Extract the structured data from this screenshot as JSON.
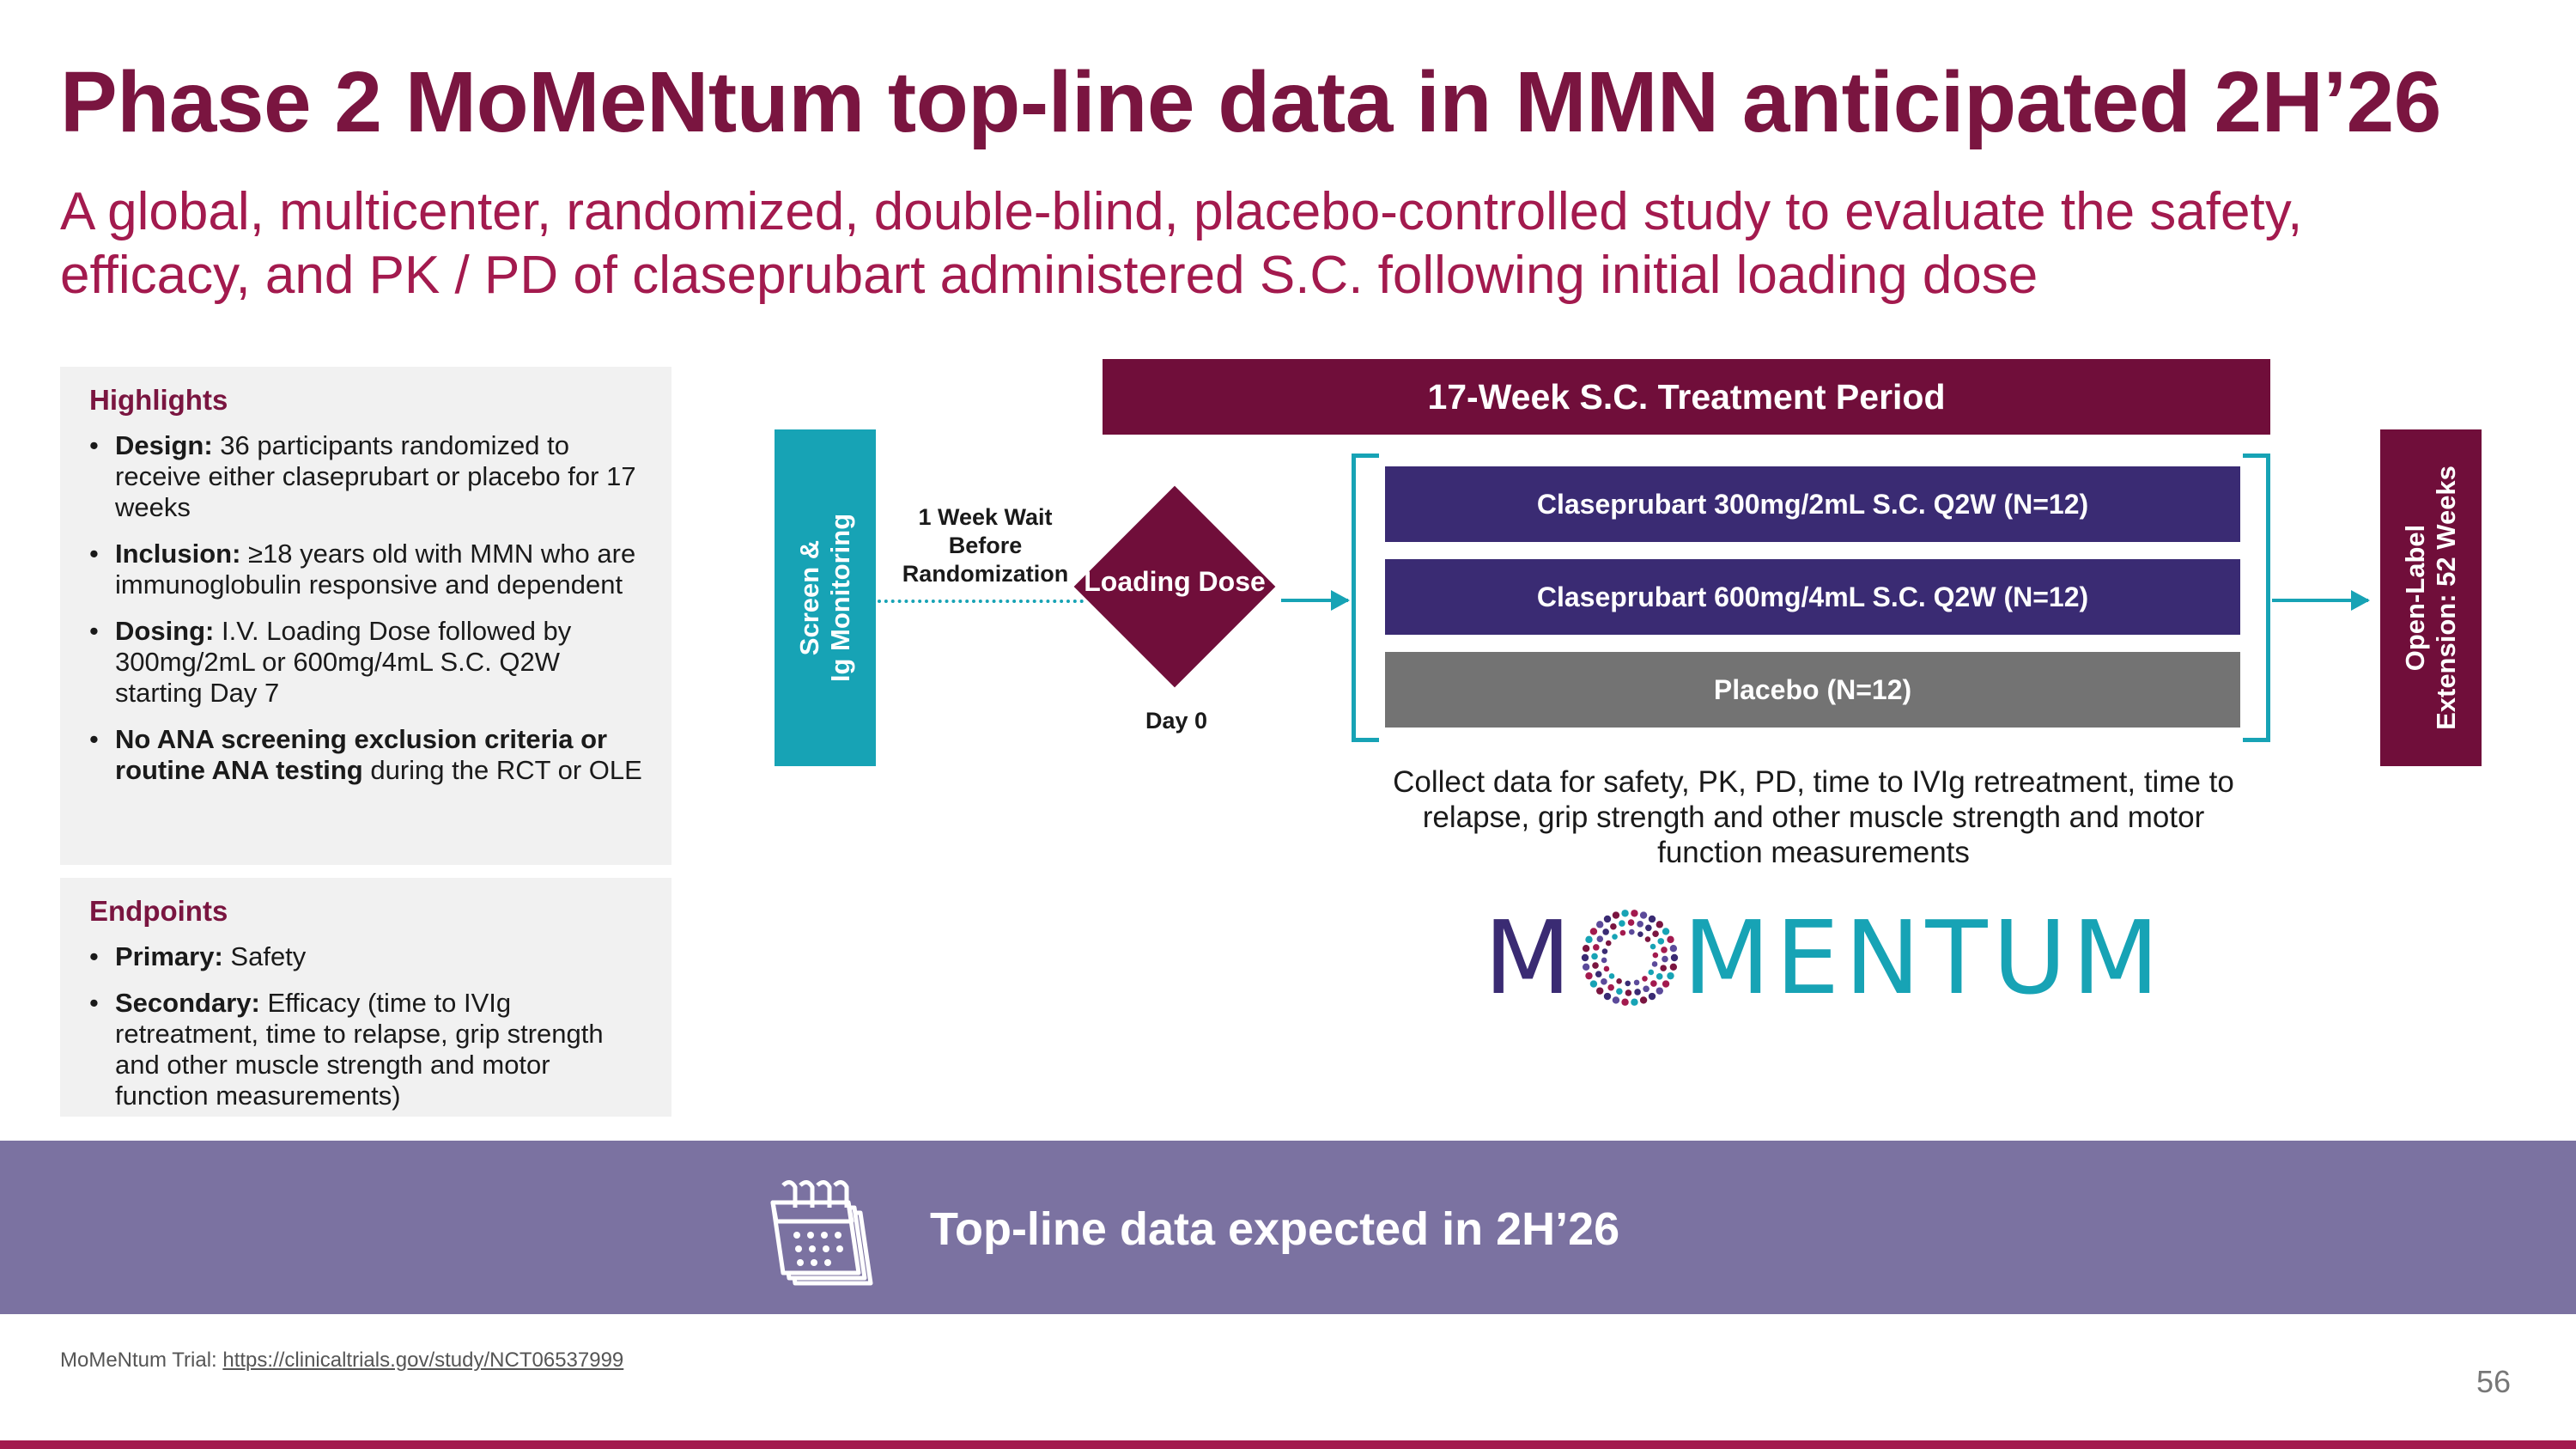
{
  "title": "Phase 2 MoMeNtum top-line data in MMN anticipated 2H’26",
  "subtitle": "A global, multicenter, randomized, double-blind, placebo-controlled study to evaluate the safety, efficacy, and PK / PD of claseprubart administered S.C. following initial loading dose",
  "highlights": {
    "heading": "Highlights",
    "items": [
      {
        "bold": "Design:",
        "text": " 36 participants randomized to receive either claseprubart or placebo for 17 weeks",
        "tail": ""
      },
      {
        "bold": "Inclusion:",
        "text": " ≥18 years old with MMN who are immunoglobulin responsive and dependent",
        "tail": ""
      },
      {
        "bold": "Dosing:",
        "text": " I.V. Loading Dose followed by 300mg/2mL or 600mg/4mL S.C. Q2W starting Day 7",
        "tail": ""
      },
      {
        "bold": "No ANA screening exclusion criteria or routine ANA testing",
        "text": " during the RCT or OLE",
        "tail": ""
      }
    ]
  },
  "endpoints": {
    "heading": "Endpoints",
    "items": [
      {
        "bold": "Primary:",
        "text": " Safety"
      },
      {
        "bold": "Secondary:",
        "text": " Efficacy (time to IVIg retreatment, time to relapse, grip strength and other muscle strength and motor function measurements)"
      }
    ]
  },
  "diagram": {
    "treatment_period": "17-Week S.C. Treatment Period",
    "screen_lines": [
      "Screen &",
      "Ig Monitoring"
    ],
    "wait_label": "1 Week Wait Before Randomization",
    "loading_dose": "Loading Dose",
    "day0": "Day 0",
    "arms": [
      "Claseprubart 300mg/2mL S.C. Q2W (N=12)",
      "Claseprubart 600mg/4mL S.C. Q2W (N=12)",
      "Placebo (N=12)"
    ],
    "ole_lines": [
      "Open-Label",
      "Extension: 52 Weeks"
    ],
    "collect": "Collect data for safety, PK, PD, time to IVIg retreatment, time to relapse, grip strength and other muscle strength and motor function measurements"
  },
  "logo": {
    "m": "M",
    "rest": "MENTUM"
  },
  "bottom_banner": "Top-line data expected in 2H’26",
  "footnote": {
    "label": "MoMeNtum Trial: ",
    "link": "https://clinicaltrials.gov/study/NCT06537999"
  },
  "page_number": "56",
  "colors": {
    "maroon": "#700e3a",
    "teal": "#17a3b5",
    "purple": "#3a2b73",
    "grey": "#737373",
    "banner": "#7b72a1"
  }
}
